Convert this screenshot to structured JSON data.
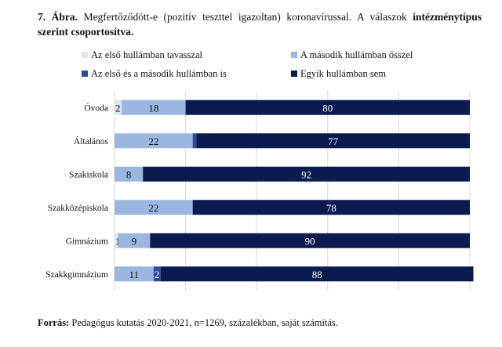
{
  "title": {
    "number": "7. Ábra.",
    "text_part1": "Megfertőződött-e (pozitív teszttel igazoltan) koronavírussal. A válaszok ",
    "text_part2": "intézménytípus szerint csoportosítva."
  },
  "chart_data": {
    "type": "bar",
    "orientation": "horizontal",
    "stacked": true,
    "categories": [
      "Óvoda",
      "Általános",
      "Szakiskola",
      "Szakközépiskola",
      "Gimnázium",
      "Szakkgimnázium"
    ],
    "series": [
      {
        "name": "Az első hullámban tavasszal",
        "color": "#dbe5f1",
        "values": [
          2,
          0,
          0,
          0,
          1,
          0
        ]
      },
      {
        "name": "A második hullámban ősszel",
        "color": "#9bb7e0",
        "values": [
          18,
          22,
          8,
          22,
          9,
          11
        ]
      },
      {
        "name": "Az első és a második hullámban is",
        "color": "#2e4a9e",
        "values": [
          0,
          1,
          0,
          0,
          0,
          2
        ]
      },
      {
        "name": "Egyik hullámban sem",
        "color": "#0b1a4f",
        "values": [
          80,
          77,
          92,
          78,
          90,
          88
        ]
      }
    ],
    "data_labels": [
      [
        "2",
        "18",
        "",
        "80"
      ],
      [
        "",
        "22",
        "",
        "77"
      ],
      [
        "",
        "8",
        "",
        "92"
      ],
      [
        "",
        "22",
        "",
        "78"
      ],
      [
        "1",
        "9",
        "",
        "90"
      ],
      [
        "",
        "11",
        "2",
        "88"
      ]
    ],
    "xlim": [
      0,
      100
    ],
    "grid": true,
    "legend_position": "top"
  },
  "source": {
    "label": "Forrás:",
    "text": " Pedagógus kutatás 2020-2021, n=1269, százalékban, saját számítás."
  }
}
